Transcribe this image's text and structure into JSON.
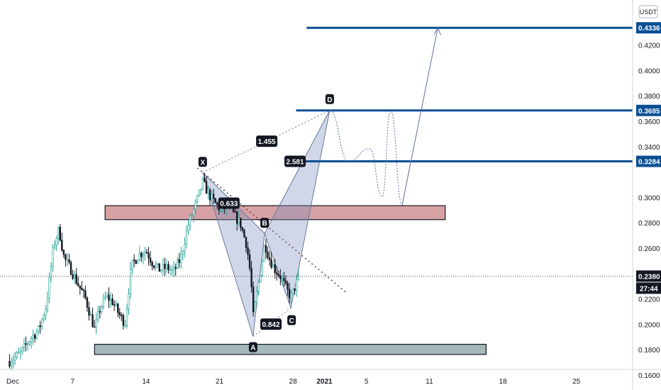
{
  "chart_data": {
    "type": "candlestick",
    "currency": "USDT",
    "y_axis": {
      "range": [
        0.1483,
        0.4555
      ],
      "ticks": [
        "0.1600",
        "0.1800",
        "0.2000",
        "0.2200",
        "0.2600",
        "0.2800",
        "0.3000",
        "0.3400",
        "0.3600",
        "0.3800",
        "0.4000",
        "0.4200"
      ]
    },
    "x_axis": {
      "ticks": [
        {
          "label": "Dec",
          "day": 0.3
        },
        {
          "label": "7",
          "day": 6
        },
        {
          "label": "14",
          "day": 13
        },
        {
          "label": "21",
          "day": 20
        },
        {
          "label": "28",
          "day": 27
        },
        {
          "label": "2021",
          "day": 30
        },
        {
          "label": "5",
          "day": 34
        },
        {
          "label": "11",
          "day": 40
        },
        {
          "label": "18",
          "day": 47
        },
        {
          "label": "25",
          "day": 54
        }
      ]
    },
    "price_levels": [
      {
        "value": 0.4336,
        "label": "0.4336",
        "from_day": 28.3
      },
      {
        "value": 0.3685,
        "label": "0.3685",
        "from_day": 27.3
      },
      {
        "value": 0.3284,
        "label": "0.3284",
        "from_day": 27.3
      }
    ],
    "current_price": {
      "label": "0.2380",
      "value": 0.238,
      "countdown": "27:44"
    },
    "zones": [
      {
        "name": "resistance-zone",
        "day_from": 9.1,
        "day_to": 41.5,
        "price_from": 0.2825,
        "price_to": 0.2935,
        "color": "#d7a1a4"
      },
      {
        "name": "support-zone",
        "day_from": 8.1,
        "day_to": 45.4,
        "price_from": 0.1763,
        "price_to": 0.1843,
        "color": "#a3b9b9"
      }
    ],
    "harmonic_points": [
      {
        "label": "X",
        "day": 18.4,
        "price": 0.3196
      },
      {
        "label": "A",
        "day": 23.2,
        "price": 0.1905
      },
      {
        "label": "B",
        "day": 24.3,
        "price": 0.2716
      },
      {
        "label": "C",
        "day": 26.8,
        "price": 0.2128
      },
      {
        "label": "D",
        "day": 30.5,
        "price": 0.3685
      }
    ],
    "ratios": [
      {
        "label": "0.633",
        "day": 20.9,
        "price": 0.2955
      },
      {
        "label": "0.842",
        "day": 24.9,
        "price": 0.2002
      },
      {
        "label": "2.581",
        "day": 27.2,
        "price": 0.3284
      },
      {
        "label": "1.455",
        "day": 24.5,
        "price": 0.3443
      }
    ],
    "trendline": {
      "from": {
        "day": 17.9,
        "price": 0.3232
      },
      "to": {
        "day": 32.2,
        "price": 0.2242
      }
    },
    "projection": [
      {
        "day": 30.5,
        "price": 0.3685
      },
      {
        "day": 32.3,
        "price": 0.3284
      },
      {
        "day": 34.3,
        "price": 0.3384
      },
      {
        "day": 35.5,
        "price": 0.3006
      },
      {
        "day": 36.3,
        "price": 0.3684
      },
      {
        "day": 37.4,
        "price": 0.2941
      },
      {
        "day": 40.8,
        "price": 0.4336
      }
    ]
  }
}
